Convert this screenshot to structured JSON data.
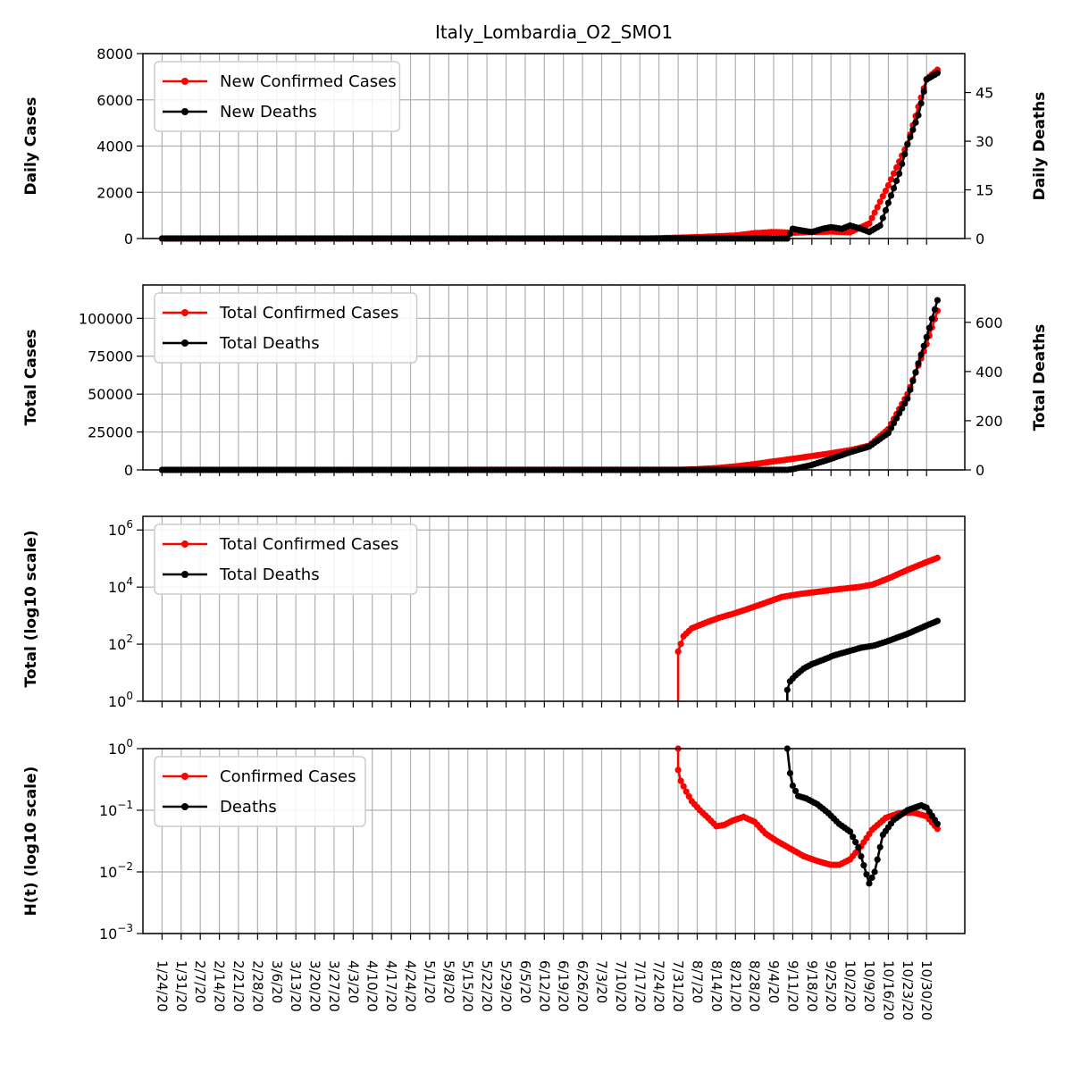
{
  "chart_data": {
    "type": "line",
    "title": "Italy_Lombardia_O2_SMO1",
    "date_ticks": [
      "1/24/20",
      "1/31/20",
      "2/7/20",
      "2/14/20",
      "2/21/20",
      "2/28/20",
      "3/6/20",
      "3/13/20",
      "3/20/20",
      "3/27/20",
      "4/3/20",
      "4/10/20",
      "4/17/20",
      "4/24/20",
      "5/1/20",
      "5/8/20",
      "5/15/20",
      "5/22/20",
      "5/29/20",
      "6/5/20",
      "6/12/20",
      "6/19/20",
      "6/26/20",
      "7/3/20",
      "7/10/20",
      "7/17/20",
      "7/24/20",
      "7/31/20",
      "8/7/20",
      "8/14/20",
      "8/21/20",
      "8/28/20",
      "9/4/20",
      "9/11/20",
      "9/18/20",
      "9/25/20",
      "10/2/20",
      "10/9/20",
      "10/16/20",
      "10/23/20",
      "10/30/20"
    ],
    "xlim": [
      "1/17/20",
      "11/13/20"
    ],
    "grid": true,
    "panels": [
      {
        "ylabel": "Daily Cases",
        "ylabel_right": "Daily Deaths",
        "ylim": [
          0,
          8000
        ],
        "ylim_right": [
          0,
          57
        ],
        "yticks": [
          "0",
          "2000",
          "4000",
          "6000",
          "8000"
        ],
        "yticks_right": [
          "0",
          "15",
          "30",
          "45"
        ],
        "legend_position": "upper-left",
        "series": [
          {
            "name": "New Confirmed Cases",
            "color": "#ff0000",
            "axis": "left",
            "x": [
              "1/24/20",
              "7/20/20",
              "8/7/20",
              "8/21/20",
              "8/28/20",
              "9/4/20",
              "9/11/20",
              "9/18/20",
              "9/25/20",
              "10/2/20",
              "10/9/20",
              "10/16/20",
              "10/23/20",
              "10/30/20",
              "11/3/20"
            ],
            "y": [
              0,
              0,
              60,
              130,
              230,
              280,
              250,
              280,
              300,
              270,
              650,
              2300,
              4100,
              6900,
              7300
            ]
          },
          {
            "name": "New Deaths",
            "color": "#000000",
            "axis": "right",
            "x": [
              "1/24/20",
              "9/9/20",
              "9/11/20",
              "9/14/20",
              "9/18/20",
              "9/22/20",
              "9/25/20",
              "9/29/20",
              "10/2/20",
              "10/6/20",
              "10/9/20",
              "10/13/20",
              "10/16/20",
              "10/20/20",
              "10/23/20",
              "10/27/20",
              "10/30/20",
              "11/3/20"
            ],
            "y": [
              0,
              0,
              3,
              2.5,
              2,
              3,
              3.5,
              3,
              4,
              3,
              2,
              4,
              11,
              20,
              29,
              38,
              49,
              51
            ]
          }
        ]
      },
      {
        "ylabel": "Total Cases",
        "ylabel_right": "Total Deaths",
        "ylim": [
          0,
          122000
        ],
        "ylim_right": [
          0,
          752
        ],
        "yticks": [
          "0",
          "25000",
          "50000",
          "75000",
          "100000"
        ],
        "yticks_right": [
          "0",
          "200",
          "400",
          "600"
        ],
        "legend_position": "upper-left",
        "series": [
          {
            "name": "Total Confirmed Cases",
            "color": "#ff0000",
            "axis": "left",
            "x": [
              "1/24/20",
              "7/31/20",
              "8/7/20",
              "8/14/20",
              "8/21/20",
              "8/28/20",
              "9/4/20",
              "9/11/20",
              "9/18/20",
              "9/25/20",
              "10/2/20",
              "10/9/20",
              "10/16/20",
              "10/23/20",
              "10/30/20",
              "11/3/20"
            ],
            "y": [
              0,
              50,
              500,
              1200,
              2300,
              3800,
              5600,
              7300,
              9100,
              11000,
              13000,
              16000,
              27000,
              50000,
              83000,
              105000
            ]
          },
          {
            "name": "Total Deaths",
            "color": "#000000",
            "axis": "right",
            "x": [
              "1/24/20",
              "9/9/20",
              "9/11/20",
              "9/18/20",
              "9/25/20",
              "10/2/20",
              "10/9/20",
              "10/16/20",
              "10/23/20",
              "10/30/20",
              "11/3/20"
            ],
            "y": [
              0,
              0,
              3,
              20,
              45,
              72,
              95,
              150,
              290,
              540,
              690
            ]
          }
        ]
      },
      {
        "ylabel": "Total (log10 scale)",
        "scale": "log",
        "ylim": [
          1,
          3000000
        ],
        "yticks": [
          "10^0",
          "10^2",
          "10^4",
          "10^6"
        ],
        "legend_position": "upper-left",
        "series": [
          {
            "name": "Total Confirmed Cases",
            "color": "#ff0000",
            "x": [
              "7/31/20",
              "7/31/20",
              "8/2/20",
              "8/5/20",
              "8/10/20",
              "8/15/20",
              "8/20/20",
              "8/25/20",
              "8/31/20",
              "9/7/20",
              "9/14/20",
              "9/21/20",
              "9/28/20",
              "10/5/20",
              "10/10/20",
              "10/16/20",
              "10/23/20",
              "10/30/20",
              "11/3/20"
            ],
            "y": [
              1,
              55,
              190,
              360,
              560,
              840,
              1150,
              1650,
              2600,
              4500,
              5800,
              7000,
              8500,
              10000,
              12000,
              20000,
              40000,
              75000,
              105000
            ]
          },
          {
            "name": "Total Deaths",
            "color": "#000000",
            "x": [
              "9/9/20",
              "9/9/20",
              "9/10/20",
              "9/12/20",
              "9/15/20",
              "9/18/20",
              "9/22/20",
              "9/26/20",
              "10/1/20",
              "10/6/20",
              "10/11/20",
              "10/16/20",
              "10/23/20",
              "10/30/20",
              "11/3/20"
            ],
            "y": [
              1,
              2.5,
              5,
              8,
              14,
              20,
              28,
              40,
              55,
              75,
              90,
              130,
              230,
              450,
              650
            ]
          }
        ]
      },
      {
        "ylabel": "H(t) (log10 scale)",
        "scale": "log",
        "ylim": [
          0.001,
          1
        ],
        "yticks": [
          "10^-3",
          "10^-2",
          "10^-1",
          "10^0"
        ],
        "legend_position": "upper-left",
        "series": [
          {
            "name": "Confirmed Cases",
            "color": "#ff0000",
            "x": [
              "7/31/20",
              "7/31/20",
              "8/1/20",
              "8/3/20",
              "8/5/20",
              "8/8/20",
              "8/11/20",
              "8/14/20",
              "8/17/20",
              "8/20/20",
              "8/24/20",
              "8/28/20",
              "9/1/20",
              "9/5/20",
              "9/10/20",
              "9/15/20",
              "9/20/20",
              "9/25/20",
              "9/28/20",
              "10/2/20",
              "10/6/20",
              "10/10/20",
              "10/15/20",
              "10/20/20",
              "10/25/20",
              "10/30/20",
              "11/3/20"
            ],
            "y": [
              1,
              0.45,
              0.3,
              0.2,
              0.14,
              0.1,
              0.075,
              0.055,
              0.058,
              0.068,
              0.078,
              0.065,
              0.042,
              0.032,
              0.024,
              0.018,
              0.015,
              0.013,
              0.013,
              0.016,
              0.026,
              0.048,
              0.075,
              0.09,
              0.092,
              0.08,
              0.05
            ]
          },
          {
            "name": "Deaths",
            "color": "#000000",
            "x": [
              "9/9/20",
              "9/10/20",
              "9/11/20",
              "9/13/20",
              "9/16/20",
              "9/20/20",
              "9/24/20",
              "9/28/20",
              "10/2/20",
              "10/5/20",
              "10/9/20",
              "10/11/20",
              "10/14/20",
              "10/18/20",
              "10/23/20",
              "10/28/20",
              "10/30/20",
              "11/3/20"
            ],
            "y": [
              1,
              0.4,
              0.25,
              0.17,
              0.155,
              0.125,
              0.09,
              0.06,
              0.045,
              0.025,
              0.0065,
              0.01,
              0.04,
              0.07,
              0.1,
              0.12,
              0.11,
              0.06
            ]
          }
        ]
      }
    ]
  }
}
